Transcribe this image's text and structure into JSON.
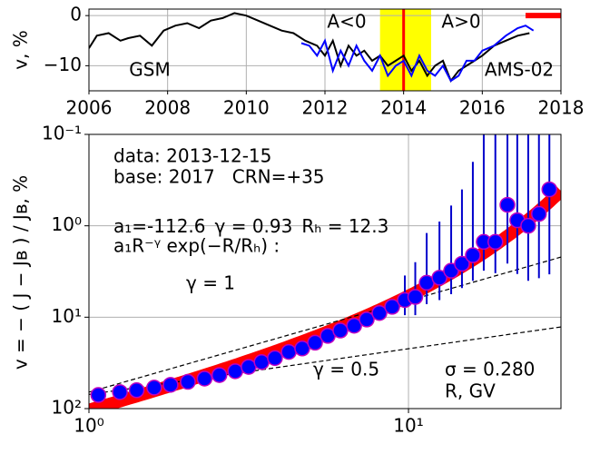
{
  "chart_data": [
    {
      "type": "line",
      "xlim": [
        2006,
        2018
      ],
      "ylim": [
        -15,
        1.3
      ],
      "xticks": [
        2006,
        2008,
        2010,
        2012,
        2014,
        2016,
        2018
      ],
      "yticks": [
        0,
        {
          "value": -10,
          "label": "−10"
        }
      ],
      "ylabel": "v, %",
      "grid": true,
      "shaded_span": [
        2013.4,
        2014.7
      ],
      "shaded_color": "#ffff00",
      "vline": 2014,
      "vline_color": "#ff0000",
      "bar_span": [
        2017.1,
        2018
      ],
      "bar_color": "#ff0000",
      "text_left": "A<0",
      "text_right": "A>0",
      "series": [
        {
          "name": "GSM",
          "color": "#000000",
          "x": [
            2006.0,
            2006.2,
            2006.5,
            2006.8,
            2007.0,
            2007.3,
            2007.6,
            2007.9,
            2008.2,
            2008.5,
            2008.8,
            2009.1,
            2009.4,
            2009.7,
            2010.0,
            2010.3,
            2010.6,
            2010.9,
            2011.2,
            2011.5,
            2011.8,
            2012.0,
            2012.2,
            2012.4,
            2012.6,
            2012.8,
            2013.0,
            2013.2,
            2013.4,
            2013.6,
            2013.8,
            2014.0,
            2014.2,
            2014.4,
            2014.6,
            2014.8,
            2015.0,
            2015.2,
            2015.4,
            2015.6,
            2015.8,
            2016.0,
            2016.3,
            2016.6,
            2016.9,
            2017.2
          ],
          "values": [
            -6.5,
            -4,
            -3.5,
            -5,
            -4.5,
            -4,
            -6,
            -3,
            -2,
            -1.5,
            -2.5,
            -1,
            -0.5,
            0.5,
            0,
            -1,
            -2,
            -3,
            -3.5,
            -5,
            -6,
            -8,
            -5,
            -10,
            -6,
            -8,
            -7,
            -9,
            -8,
            -10,
            -9,
            -8,
            -11,
            -9,
            -12,
            -10,
            -9,
            -13,
            -11,
            -10,
            -9,
            -8,
            -6,
            -5,
            -4,
            -3.5
          ]
        },
        {
          "name": "AMS-02",
          "color": "#0000ff",
          "x": [
            2011.4,
            2011.6,
            2011.8,
            2012.0,
            2012.2,
            2012.4,
            2012.6,
            2012.8,
            2013.0,
            2013.2,
            2013.4,
            2013.6,
            2013.8,
            2014.0,
            2014.2,
            2014.4,
            2014.6,
            2014.8,
            2015.0,
            2015.2,
            2015.4,
            2015.6,
            2015.8,
            2016.0,
            2016.3,
            2016.6,
            2016.9,
            2017.1,
            2017.3
          ],
          "values": [
            -5.5,
            -6,
            -8,
            -5,
            -11,
            -7,
            -10,
            -6,
            -9,
            -11,
            -8,
            -12,
            -10,
            -9,
            -12,
            -8,
            -11,
            -12,
            -10,
            -13,
            -12,
            -9,
            -9,
            -7,
            -6,
            -4,
            -2.5,
            -2,
            -3
          ]
        }
      ]
    },
    {
      "type": "scatter",
      "log_x": true,
      "log_y": true,
      "y_inverted": true,
      "xlim": [
        1,
        30
      ],
      "ylim": [
        0.1,
        100
      ],
      "xticks": [
        {
          "value": 1,
          "label": "10⁰"
        },
        {
          "value": 10,
          "label": "10¹"
        }
      ],
      "yticks": [
        {
          "value": 0.1,
          "label": "10⁻¹"
        },
        {
          "value": 1,
          "label": "10⁰"
        },
        {
          "value": 10,
          "label": "10¹"
        },
        {
          "value": 100,
          "label": "10²"
        }
      ],
      "grid": true,
      "xlabel": "R, GV",
      "ylabel": "v = − ( J − Jʙ ) / Jʙ, %",
      "x": [
        1.07,
        1.25,
        1.41,
        1.6,
        1.8,
        2.04,
        2.3,
        2.56,
        2.87,
        3.16,
        3.47,
        3.82,
        4.22,
        4.65,
        5.1,
        5.59,
        6.12,
        6.76,
        7.4,
        8.11,
        8.89,
        9.74,
        10.5,
        11.4,
        12.5,
        13.6,
        14.7,
        15.9,
        17.2,
        18.7,
        20.4,
        21.9,
        23.7,
        25.6,
        27.6
      ],
      "values": [
        71,
        66,
        63,
        59,
        55,
        51,
        47,
        43,
        39,
        35,
        31,
        28,
        24,
        22,
        19,
        16,
        14,
        12.4,
        10.6,
        9.0,
        7.7,
        6.5,
        6.0,
        4.2,
        3.7,
        3.1,
        2.6,
        2.1,
        1.5,
        1.5,
        0.59,
        0.87,
        1.0,
        0.74,
        0.4
      ],
      "errors": [
        null,
        null,
        null,
        null,
        null,
        null,
        null,
        null,
        null,
        null,
        null,
        null,
        null,
        null,
        null,
        null,
        null,
        null,
        null,
        null,
        null,
        3,
        3.5,
        3,
        2.8,
        2.5,
        2.2,
        1.9,
        1.6,
        1.8,
        2,
        2.5,
        3,
        3,
        3
      ],
      "color": "#0000ff",
      "edge_color": "#c000c0",
      "error_color": "#0000cc",
      "fit": {
        "a1_label": "a₁=",
        "a1": -112.6,
        "gamma_label": "γ = ",
        "gamma": 0.93,
        "RH_label": "Rₕ = ",
        "RH": 12.3,
        "formula": "a₁R⁻ᵞ exp(−R/Rₕ) :"
      },
      "fit_color": "#ff0000",
      "reference_lines": [
        {
          "label": "γ = 1",
          "gamma": 1,
          "amplitude": 66
        },
        {
          "label": "γ = 0.5",
          "gamma": 0.5,
          "amplitude": 70
        }
      ],
      "date_text": "data: 2013-12-15",
      "base_text": "base: 2017   CRN=+35",
      "sigma_text": "σ = 0.280"
    }
  ]
}
